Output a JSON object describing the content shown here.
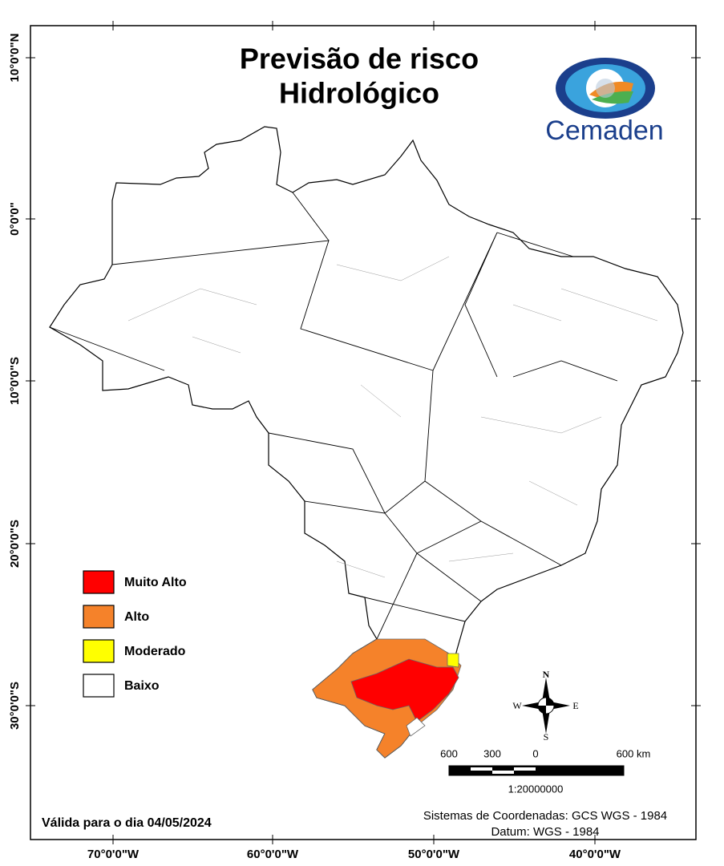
{
  "title_lines": [
    "Previsão de risco",
    "Hidrológico"
  ],
  "logo_text": "Cemaden",
  "legend": [
    {
      "label": "Muito Alto",
      "color": "#ff0000"
    },
    {
      "label": "Alto",
      "color": "#f5822a"
    },
    {
      "label": "Moderado",
      "color": "#ffff00"
    },
    {
      "label": "Baixo",
      "color": "#ffffff"
    }
  ],
  "x_ticks": [
    "70°0'0\"W",
    "60°0'0\"W",
    "50°0'0\"W",
    "40°0'0\"W"
  ],
  "y_ticks": [
    "10°0'0\"N",
    "0°0'0\"",
    "10°0'0\"S",
    "20°0'0\"S",
    "30°0'0\"S"
  ],
  "compass": {
    "north": "N",
    "south": "S",
    "east": "E",
    "west": "W"
  },
  "scale_bar": {
    "labels": [
      "600",
      "300",
      "0",
      "600 km"
    ],
    "ratio": "1:20000000"
  },
  "valid_date": "Válida para o dia 04/05/2024",
  "coordinate_system": [
    "Sistemas de Coordenadas: GCS WGS - 1984",
    "Datum: WGS - 1984"
  ]
}
